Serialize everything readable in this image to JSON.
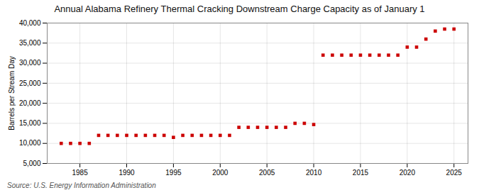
{
  "chart_data": {
    "type": "scatter",
    "title": "Annual Alabama Refinery Thermal Cracking Downstream Charge Capacity as of January 1",
    "ylabel": "Barrels per Stream Day",
    "source": "Source: U.S. Energy Information Administration",
    "color": "#cc0000",
    "marker": "square",
    "grid": true,
    "xlim": [
      1981.5,
      2026.5
    ],
    "ylim": [
      5000,
      40000
    ],
    "xticks": [
      1985,
      1990,
      1995,
      2000,
      2005,
      2010,
      2015,
      2020,
      2025
    ],
    "yticks": [
      {
        "value": 5000,
        "label": "5,000"
      },
      {
        "value": 10000,
        "label": "10,000"
      },
      {
        "value": 15000,
        "label": "15,000"
      },
      {
        "value": 20000,
        "label": "20,000"
      },
      {
        "value": 25000,
        "label": "25,000"
      },
      {
        "value": 30000,
        "label": "30,000"
      },
      {
        "value": 35000,
        "label": "35,000"
      },
      {
        "value": 40000,
        "label": "40,000"
      }
    ],
    "x": [
      1983,
      1984,
      1985,
      1986,
      1987,
      1988,
      1989,
      1990,
      1991,
      1992,
      1993,
      1994,
      1995,
      1996,
      1997,
      1998,
      1999,
      2000,
      2001,
      2002,
      2003,
      2004,
      2005,
      2006,
      2007,
      2008,
      2009,
      2010,
      2011,
      2012,
      2013,
      2014,
      2015,
      2016,
      2017,
      2018,
      2019,
      2020,
      2021,
      2022,
      2023,
      2024,
      2025
    ],
    "values": [
      10000,
      10000,
      10000,
      10000,
      12000,
      12000,
      12000,
      12000,
      12000,
      12000,
      12000,
      12000,
      11500,
      12000,
      12000,
      12000,
      12000,
      12000,
      12000,
      14000,
      14000,
      14000,
      14000,
      14000,
      14000,
      15000,
      15000,
      14700,
      32000,
      32000,
      32000,
      32000,
      32000,
      32000,
      32000,
      32000,
      32000,
      34000,
      34000,
      36000,
      38000,
      38500,
      38500
    ]
  }
}
